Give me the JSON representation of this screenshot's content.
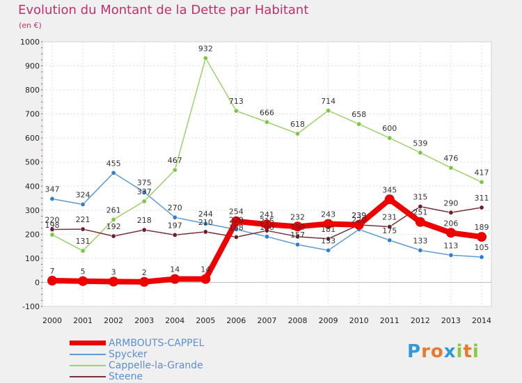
{
  "header": {
    "title": "Evolution du Montant de la Dette par Habitant",
    "unit": "(en €)"
  },
  "brand": {
    "letters": [
      "P",
      "r",
      "o",
      "x",
      "i",
      "t",
      "i"
    ],
    "colors": [
      "#2f9ad6",
      "#e8792e",
      "#e8792e",
      "#2f9ad6",
      "#8dc63f",
      "#e8792e",
      "#8dc63f"
    ]
  },
  "chart_data": {
    "type": "line",
    "title": "Evolution du Montant de la Dette par Habitant",
    "ylabel": "(en €)",
    "xlabel": "",
    "ylim": [
      -100,
      1000
    ],
    "yticks": [
      -100,
      0,
      100,
      200,
      300,
      400,
      500,
      600,
      700,
      800,
      900,
      1000
    ],
    "x": [
      "2000",
      "2001",
      "2002",
      "2003",
      "2004",
      "2005",
      "2006",
      "2007",
      "2008",
      "2009",
      "2010",
      "2011",
      "2012",
      "2013",
      "2014"
    ],
    "grid": true,
    "legend": "bottom-left",
    "series": [
      {
        "name": "ARMBOUTS-CAPPEL",
        "color": "#ee0000",
        "emphasis": "bold",
        "values": [
          7,
          5,
          3,
          2,
          14,
          14,
          254,
          241,
          232,
          243,
          239,
          345,
          251,
          206,
          189
        ],
        "labels": [
          "7",
          "5",
          "3",
          "2",
          "14",
          "14",
          "254",
          "241",
          "232",
          "243",
          "239",
          "345",
          "251",
          "206",
          "189"
        ]
      },
      {
        "name": "Spycker",
        "color": "#5b9bd5",
        "point_color": "#2f7fd0",
        "values": [
          347,
          324,
          455,
          375,
          270,
          244,
          220,
          190,
          157,
          133,
          220,
          175,
          133,
          113,
          105
        ],
        "labels": [
          "347",
          "324",
          "455",
          "375",
          "270",
          "244",
          "220",
          "190",
          "157",
          "133",
          "220",
          "175",
          "133",
          "113",
          "105"
        ]
      },
      {
        "name": "Cappelle-la-Grande",
        "color": "#9ad168",
        "point_color": "#7ac943",
        "values": [
          198,
          131,
          261,
          337,
          467,
          932,
          713,
          666,
          618,
          714,
          658,
          600,
          539,
          476,
          417
        ],
        "labels": [
          "198",
          "131",
          "261",
          "337",
          "467",
          "932",
          "713",
          "666",
          "618",
          "714",
          "658",
          "600",
          "539",
          "476",
          "417"
        ]
      },
      {
        "name": "Steene",
        "color": "#7a2f3a",
        "point_color": "#6b1f2a",
        "values": [
          220,
          221,
          192,
          218,
          197,
          210,
          188,
          215,
          190,
          181,
          239,
          231,
          315,
          290,
          311
        ],
        "labels": [
          "220",
          "221",
          "192",
          "218",
          "197",
          "210",
          "188",
          "215",
          "190",
          "181",
          "239",
          "231",
          "315",
          "290",
          "311"
        ]
      }
    ]
  }
}
